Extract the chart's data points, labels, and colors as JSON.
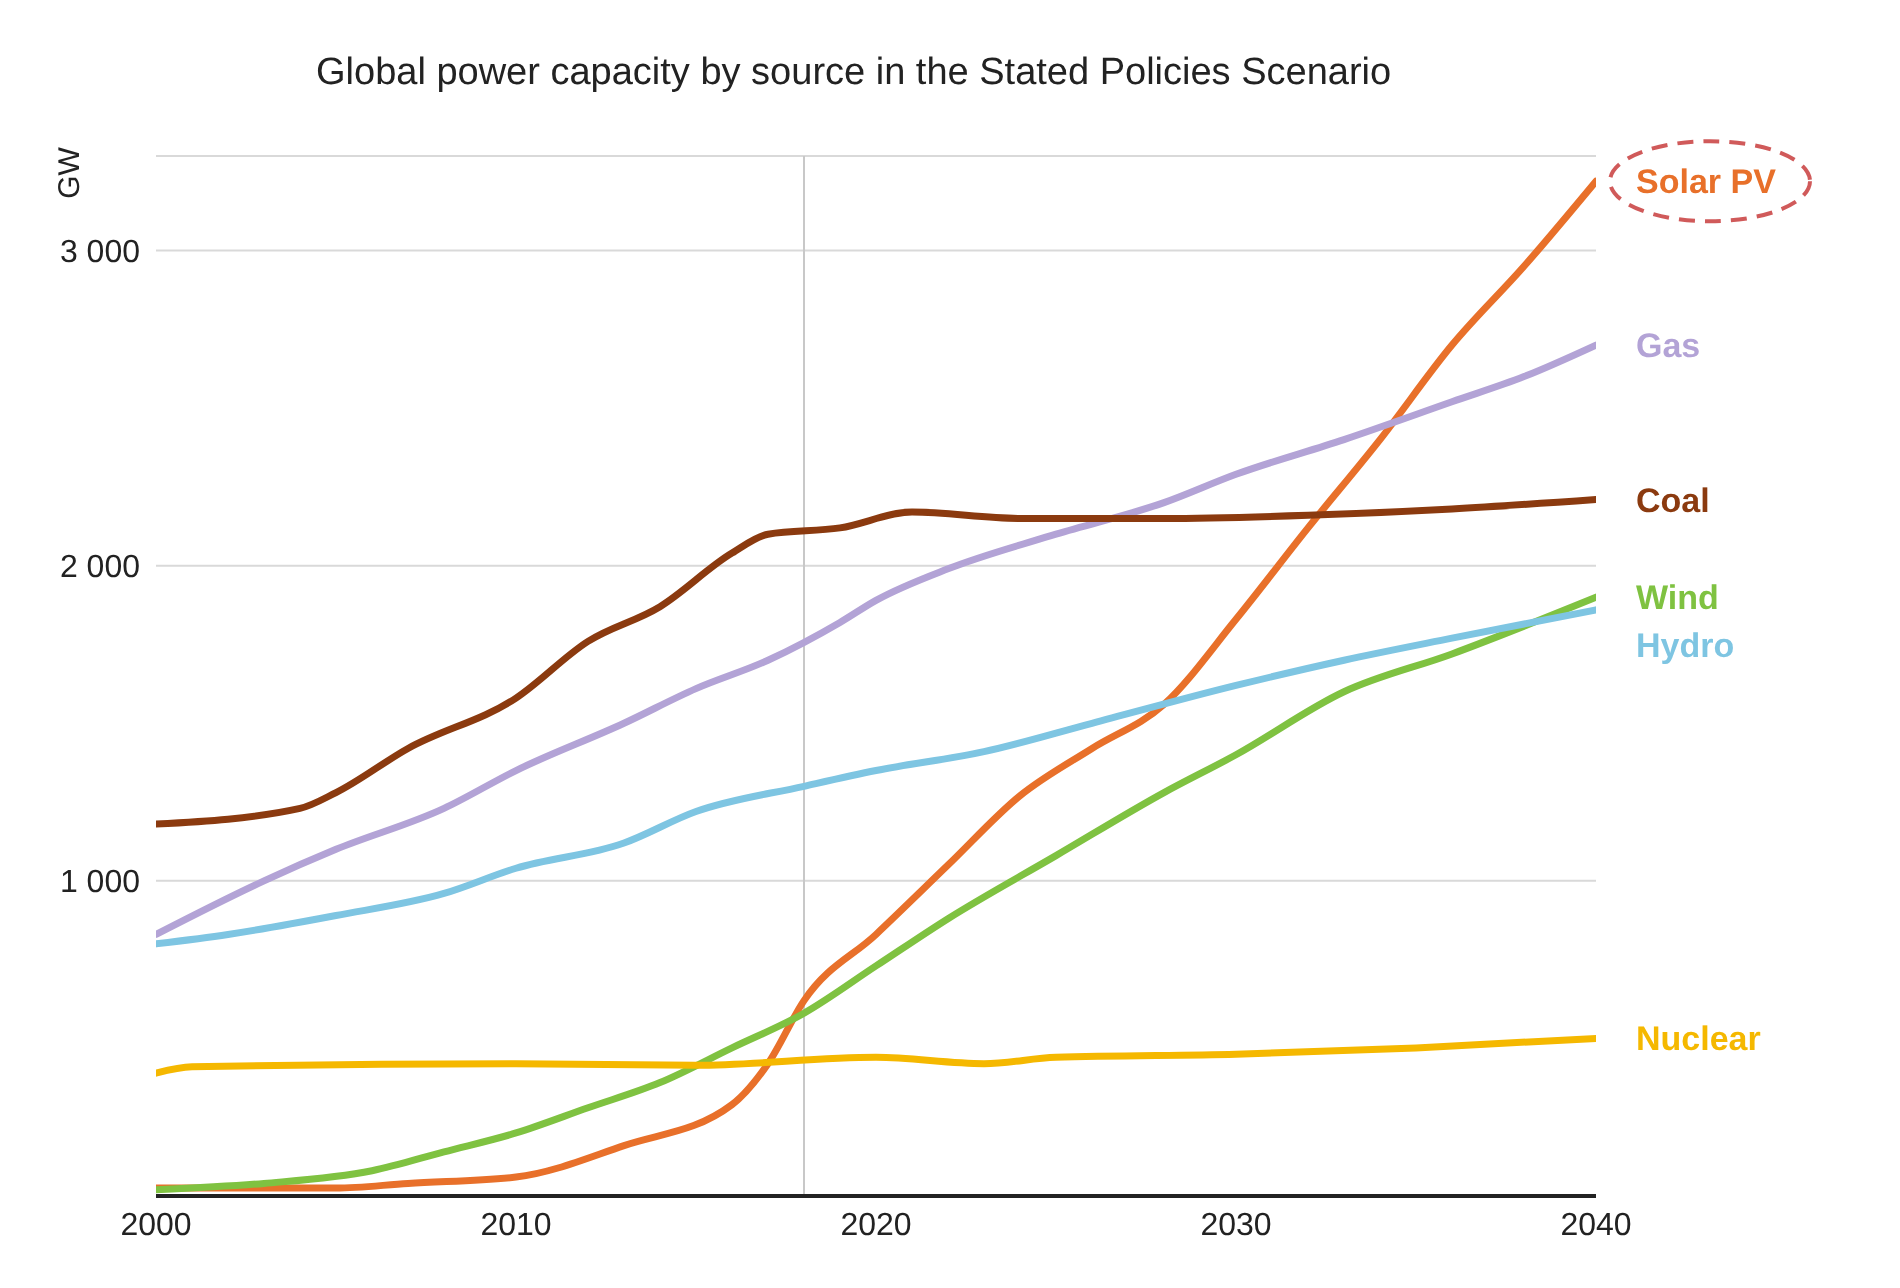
{
  "chart_data": {
    "type": "line",
    "title": "Global power capacity by source in the Stated Policies Scenario",
    "ylabel": "GW",
    "xlim": [
      2000,
      2040
    ],
    "xticks": [
      2000,
      2010,
      2020,
      2030,
      2040
    ],
    "ylim": [
      0,
      3300
    ],
    "yticks": [
      {
        "value": 1000,
        "label": "1 000"
      },
      {
        "value": 2000,
        "label": "2 000"
      },
      {
        "value": 3000,
        "label": "3 000"
      }
    ],
    "grid": "y",
    "line_style": "solid",
    "marker": "none",
    "ref_lines": [
      {
        "axis": "x",
        "value": 2018,
        "color": "#c8c8c8"
      }
    ],
    "series": [
      {
        "name": "Solar PV",
        "color": "#e8702a",
        "x": [
          2000,
          2005,
          2007,
          2010,
          2013,
          2016,
          2017,
          2018,
          2020,
          2022,
          2024,
          2026,
          2028,
          2030,
          2032,
          2034,
          2036,
          2038,
          2040
        ],
        "values": [
          25,
          25,
          40,
          60,
          160,
          290,
          420,
          620,
          830,
          1050,
          1270,
          1420,
          1560,
          1830,
          2120,
          2400,
          2700,
          2950,
          3220
        ]
      },
      {
        "name": "Gas",
        "color": "#b3a3d6",
        "x": [
          2000,
          2003,
          2005,
          2008,
          2010,
          2013,
          2015,
          2017,
          2019,
          2020,
          2022,
          2025,
          2028,
          2030,
          2033,
          2036,
          2038,
          2040
        ],
        "values": [
          830,
          1000,
          1100,
          1230,
          1350,
          1500,
          1610,
          1700,
          1820,
          1890,
          1990,
          2100,
          2200,
          2290,
          2400,
          2520,
          2600,
          2700
        ]
      },
      {
        "name": "Coal",
        "color": "#8b3a0f",
        "x": [
          2000,
          2004,
          2005,
          2007,
          2010,
          2012,
          2014,
          2016,
          2017,
          2019,
          2021,
          2024,
          2028,
          2032,
          2036,
          2040
        ],
        "values": [
          1180,
          1230,
          1280,
          1420,
          1580,
          1760,
          1870,
          2040,
          2100,
          2120,
          2170,
          2150,
          2150,
          2160,
          2180,
          2210
        ]
      },
      {
        "name": "Wind",
        "color": "#7fc241",
        "x": [
          2000,
          2003,
          2006,
          2008,
          2010,
          2012,
          2014,
          2016,
          2018,
          2020,
          2022,
          2025,
          2028,
          2030,
          2033,
          2036,
          2040
        ],
        "values": [
          20,
          40,
          80,
          140,
          200,
          280,
          360,
          470,
          580,
          730,
          880,
          1080,
          1280,
          1400,
          1600,
          1720,
          1900
        ]
      },
      {
        "name": "Hydro",
        "color": "#7ec5e2",
        "x": [
          2000,
          2002,
          2005,
          2008,
          2010,
          2013,
          2015,
          2018,
          2020,
          2023,
          2026,
          2030,
          2033,
          2036,
          2040
        ],
        "values": [
          800,
          830,
          890,
          960,
          1040,
          1120,
          1220,
          1300,
          1350,
          1410,
          1500,
          1620,
          1700,
          1770,
          1860
        ]
      },
      {
        "name": "Nuclear",
        "color": "#f5b800",
        "x": [
          2000,
          2001,
          2010,
          2015,
          2020,
          2023,
          2025,
          2030,
          2035,
          2040
        ],
        "values": [
          390,
          410,
          420,
          415,
          440,
          420,
          440,
          450,
          470,
          500
        ]
      }
    ]
  }
}
